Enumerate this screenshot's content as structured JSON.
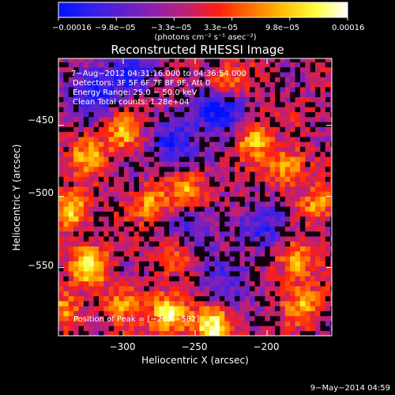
{
  "chart_data": {
    "type": "heatmap",
    "title": "Reconstructed RHESSI Image",
    "xlabel": "Heliocentric X (arcsec)",
    "ylabel": "Heliocentric Y (arcsec)",
    "xlim": [
      -345,
      -155
    ],
    "ylim": [
      -598,
      -403
    ],
    "x_ticks": [
      {
        "value": -300,
        "label": "−300"
      },
      {
        "value": -250,
        "label": "−250"
      },
      {
        "value": -200,
        "label": "−200"
      }
    ],
    "y_ticks": [
      {
        "value": -450,
        "label": "−450"
      },
      {
        "value": -500,
        "label": "−500"
      },
      {
        "value": -550,
        "label": "−550"
      }
    ],
    "colorbar": {
      "min": -0.00016,
      "max": 0.00016,
      "tick_labels": [
        "−0.00016",
        "−9.8e−05",
        "−3.3e−05",
        "3.3e−05",
        "9.8e−05",
        "0.00016"
      ],
      "units_label": "(photons cm⁻² s⁻¹ asec⁻²)",
      "colors": [
        "#0010ff",
        "#3020ee",
        "#6020cc",
        "#9020b0",
        "#c02070",
        "#ff2010",
        "#ff7000",
        "#ffc000",
        "#ffff40",
        "#ffffff"
      ]
    },
    "annotations": [
      "7−Aug−2012 04:31:16.000 to 04:36:54.000",
      "Detectors: 3F 5F 6F 7F 8F 9F, Att 0",
      "Energy Range: 25.0 − 50.0 keV",
      "Clean     Total counts: 1.28e+04"
    ],
    "peak_label": "Position of Peak = [−265,−582]",
    "hot_spots": [
      {
        "x": -268,
        "y": -583,
        "intensity": 1.0
      },
      {
        "x": -237,
        "y": -592,
        "intensity": 0.95
      },
      {
        "x": -323,
        "y": -548,
        "intensity": 0.85
      },
      {
        "x": -180,
        "y": -545,
        "intensity": 0.7
      },
      {
        "x": -335,
        "y": -510,
        "intensity": 0.75
      },
      {
        "x": -210,
        "y": -460,
        "intensity": 0.7
      },
      {
        "x": -186,
        "y": -480,
        "intensity": 0.65
      },
      {
        "x": -255,
        "y": -495,
        "intensity": 0.6
      },
      {
        "x": -280,
        "y": -505,
        "intensity": 0.55
      },
      {
        "x": -300,
        "y": -455,
        "intensity": 0.55
      },
      {
        "x": -325,
        "y": -470,
        "intensity": 0.6
      },
      {
        "x": -230,
        "y": -420,
        "intensity": 0.55
      },
      {
        "x": -165,
        "y": -505,
        "intensity": 0.55
      },
      {
        "x": -175,
        "y": -575,
        "intensity": 0.6
      },
      {
        "x": -300,
        "y": -575,
        "intensity": 0.5
      },
      {
        "x": -340,
        "y": -580,
        "intensity": 0.55
      },
      {
        "x": -260,
        "y": -540,
        "intensity": 0.45
      }
    ],
    "cold_spots": [
      {
        "x": -235,
        "y": -440,
        "intensity": -0.9
      },
      {
        "x": -265,
        "y": -465,
        "intensity": -0.6
      },
      {
        "x": -320,
        "y": -425,
        "intensity": -0.7
      },
      {
        "x": -290,
        "y": -410,
        "intensity": -0.5
      },
      {
        "x": -250,
        "y": -525,
        "intensity": -0.5
      },
      {
        "x": -200,
        "y": -520,
        "intensity": -0.5
      },
      {
        "x": -225,
        "y": -560,
        "intensity": -0.45
      }
    ]
  },
  "footer": {
    "timestamp": "9−May−2014 04:59"
  }
}
